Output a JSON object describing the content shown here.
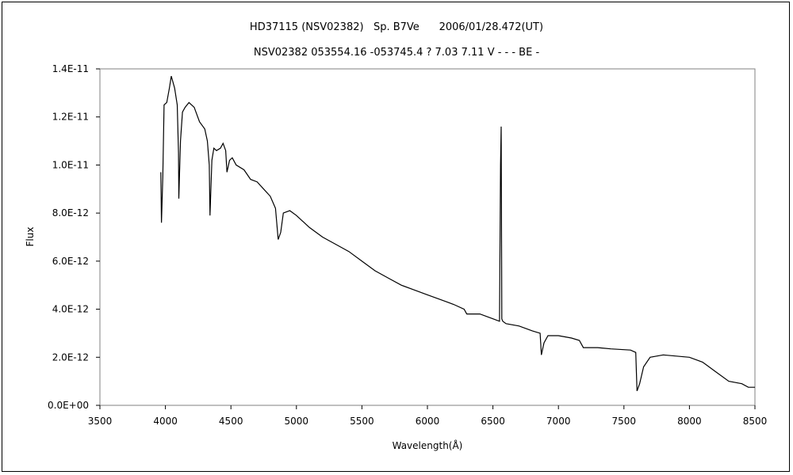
{
  "chart_data": {
    "type": "line",
    "title": "HD37115 (NSV02382)   Sp. B7Ve      2006/01/28.472(UT)",
    "subtitle": "NSV02382 053554.16 -053745.4 ? 7.03 7.11 V - - - BE -",
    "xlabel": "Wavelength(Å)",
    "ylabel": "Flux",
    "xlim": [
      3500,
      8500
    ],
    "ylim": [
      0,
      1.4e-11
    ],
    "xticks": [
      "3500",
      "4000",
      "4500",
      "5000",
      "5500",
      "6000",
      "6500",
      "7000",
      "7500",
      "8000",
      "8500"
    ],
    "yticks": [
      "0.0E+00",
      "2.0E-12",
      "4.0E-12",
      "6.0E-12",
      "8.0E-12",
      "1.0E-11",
      "1.2E-11",
      "1.4E-11"
    ],
    "grid": false,
    "line_color": "#000000",
    "series": [
      {
        "x": [
          3965,
          3970,
          3980,
          3990,
          4010,
          4030,
          4045,
          4070,
          4090,
          4100,
          4102,
          4115,
          4130,
          4150,
          4180,
          4220,
          4260,
          4300,
          4320,
          4335,
          4340,
          4355,
          4370,
          4390,
          4420,
          4440,
          4460,
          4470,
          4490,
          4510,
          4540,
          4600,
          4650,
          4700,
          4750,
          4800,
          4840,
          4861,
          4880,
          4900,
          4950,
          5000,
          5100,
          5200,
          5300,
          5400,
          5500,
          5600,
          5700,
          5800,
          5900,
          6000,
          6100,
          6200,
          6280,
          6300,
          6400,
          6500,
          6550,
          6558,
          6563,
          6568,
          6575,
          6600,
          6700,
          6800,
          6860,
          6870,
          6890,
          6920,
          7000,
          7100,
          7160,
          7190,
          7300,
          7400,
          7550,
          7590,
          7600,
          7620,
          7650,
          7700,
          7800,
          7900,
          8000,
          8100,
          8200,
          8300,
          8400,
          8450,
          8500
        ],
        "y": [
          9.7e-12,
          7.6e-12,
          9.5e-12,
          1.25e-11,
          1.26e-11,
          1.32e-11,
          1.37e-11,
          1.32e-11,
          1.25e-11,
          1.05e-11,
          8.6e-12,
          1.1e-11,
          1.22e-11,
          1.24e-11,
          1.26e-11,
          1.24e-11,
          1.18e-11,
          1.15e-11,
          1.1e-11,
          1e-11,
          7.9e-12,
          1.02e-11,
          1.07e-11,
          1.06e-11,
          1.07e-11,
          1.09e-11,
          1.06e-11,
          9.7e-12,
          1.02e-11,
          1.03e-11,
          1e-11,
          9.8e-12,
          9.4e-12,
          9.3e-12,
          9e-12,
          8.7e-12,
          8.2e-12,
          6.9e-12,
          7.2e-12,
          8e-12,
          8.1e-12,
          7.9e-12,
          7.4e-12,
          7e-12,
          6.7e-12,
          6.4e-12,
          6e-12,
          5.6e-12,
          5.3e-12,
          5e-12,
          4.8e-12,
          4.6e-12,
          4.4e-12,
          4.2e-12,
          4e-12,
          3.8e-12,
          3.8e-12,
          3.6e-12,
          3.5e-12,
          1e-11,
          1.16e-11,
          3.6e-12,
          3.5e-12,
          3.4e-12,
          3.3e-12,
          3.1e-12,
          3e-12,
          2.1e-12,
          2.6e-12,
          2.9e-12,
          2.9e-12,
          2.8e-12,
          2.7e-12,
          2.4e-12,
          2.4e-12,
          2.35e-12,
          2.3e-12,
          2.2e-12,
          6e-13,
          9e-13,
          1.6e-12,
          2e-12,
          2.1e-12,
          2.05e-12,
          2e-12,
          1.8e-12,
          1.4e-12,
          1e-12,
          9e-13,
          7.5e-13,
          7.5e-13
        ]
      }
    ]
  }
}
